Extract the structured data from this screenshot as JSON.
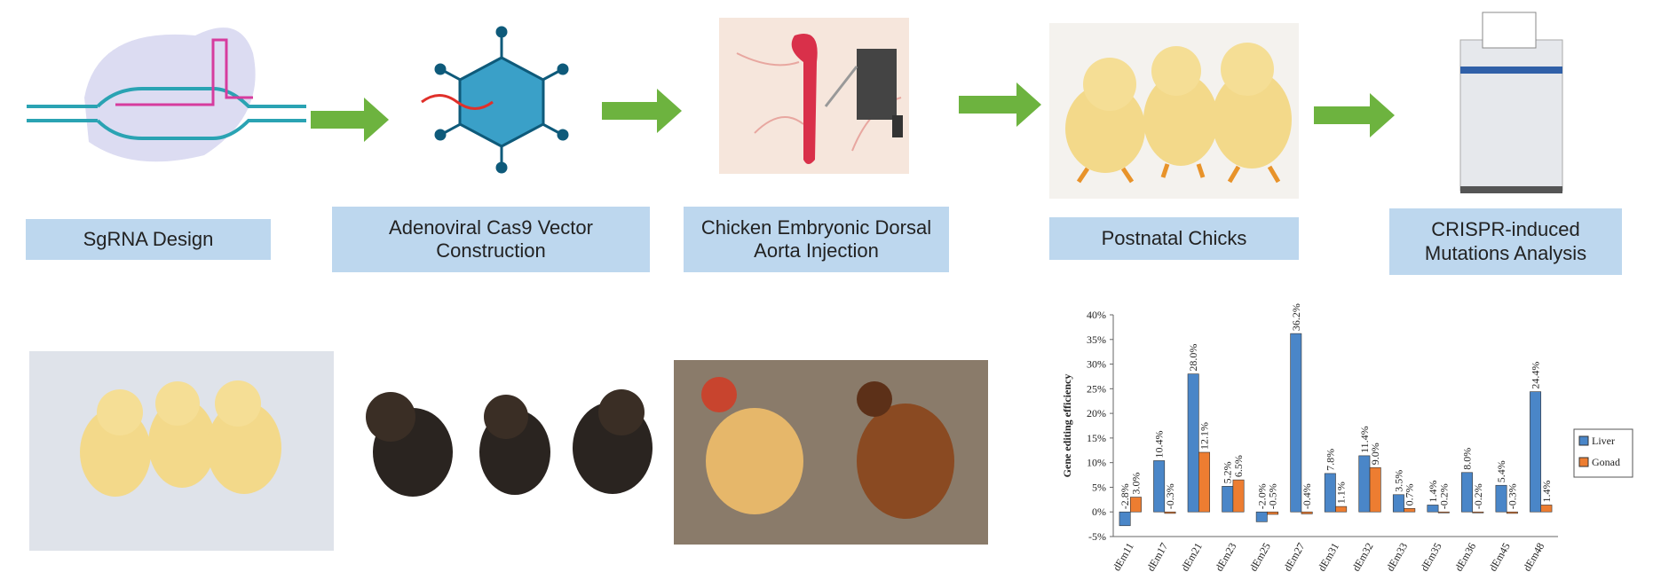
{
  "steps": [
    {
      "label": "SgRNA Design"
    },
    {
      "label": "Adenoviral Cas9 Vector Construction"
    },
    {
      "label": "Chicken Embryonic Dorsal Aorta Injection"
    },
    {
      "label": "Postnatal Chicks"
    },
    {
      "label": "CRISPR-induced Mutations Analysis"
    }
  ],
  "chart_data": {
    "type": "bar",
    "y_label": "Gene editing efficiency",
    "categories": [
      "dEm11",
      "dEm17",
      "dEm21",
      "dEm23",
      "dEm25",
      "dEm27",
      "dEm31",
      "dEm32",
      "dEm33",
      "dEm35",
      "dEm36",
      "dEm45",
      "dEm48"
    ],
    "series": [
      {
        "name": "Liver",
        "color": "#4a86c8",
        "values": [
          -2.8,
          10.4,
          28.0,
          5.2,
          -2.0,
          36.2,
          7.8,
          11.4,
          3.5,
          1.4,
          8.0,
          5.4,
          24.4
        ],
        "value_labels": [
          "-2.8%",
          "10.4%",
          "28.0%",
          "5.2%",
          "-2.0%",
          "36.2%",
          "7.8%",
          "11.4%",
          "3.5%",
          "1.4%",
          "8.0%",
          "5.4%",
          "24.4%"
        ]
      },
      {
        "name": "Gonad",
        "color": "#ed7d31",
        "values": [
          3.0,
          -0.3,
          12.1,
          6.5,
          -0.5,
          -0.4,
          1.1,
          9.0,
          0.7,
          -0.2,
          -0.2,
          -0.3,
          1.4
        ],
        "value_labels": [
          "3.0%",
          "-0.3%",
          "12.1%",
          "6.5%",
          "-0.5%",
          "-0.4%",
          "1.1%",
          "9.0%",
          "0.7%",
          "-0.2%",
          "-0.2%",
          "-0.3%",
          "1.4%"
        ]
      }
    ],
    "ylim": [
      -5,
      40
    ],
    "yticks": [
      {
        "value": -5,
        "label": "-5%"
      },
      {
        "value": 0,
        "label": "0%"
      },
      {
        "value": 5,
        "label": "5%"
      },
      {
        "value": 10,
        "label": "10%"
      },
      {
        "value": 15,
        "label": "15%"
      },
      {
        "value": 20,
        "label": "20%"
      },
      {
        "value": 25,
        "label": "25%"
      },
      {
        "value": 30,
        "label": "30%"
      },
      {
        "value": 35,
        "label": "35%"
      },
      {
        "value": 40,
        "label": "40%"
      }
    ],
    "grid": false,
    "legend": "right"
  }
}
